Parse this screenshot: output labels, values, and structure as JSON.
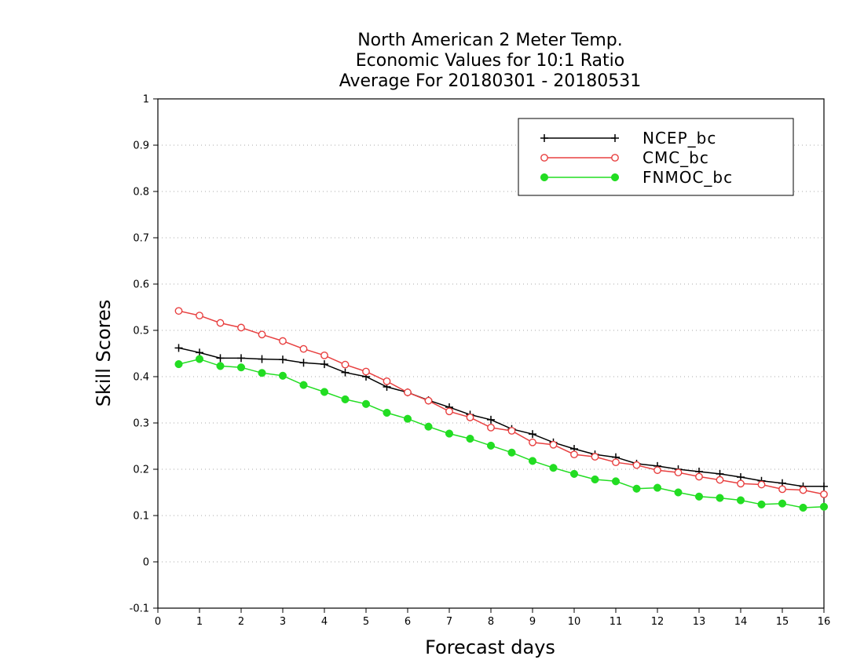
{
  "chart_data": {
    "type": "line",
    "title": [
      "North American 2 Meter Temp.",
      "Economic Values for 10:1 Ratio",
      "Average For 20180301 - 20180531"
    ],
    "xlabel": "Forecast days",
    "ylabel": "Skill Scores",
    "xlim": [
      0,
      16
    ],
    "ylim": [
      -0.1,
      1
    ],
    "x_ticks": [
      "0",
      "1",
      "2",
      "3",
      "4",
      "5",
      "6",
      "7",
      "8",
      "9",
      "10",
      "11",
      "12",
      "13",
      "14",
      "15",
      "16"
    ],
    "y_ticks": [
      "-0.1",
      "0",
      "0.1",
      "0.2",
      "0.3",
      "0.4",
      "0.5",
      "0.6",
      "0.7",
      "0.8",
      "0.9",
      "1"
    ],
    "grid": "horizontal-dotted",
    "legend_position": "top-right",
    "x": [
      0.5,
      1,
      1.5,
      2,
      2.5,
      3,
      3.5,
      4,
      4.5,
      5,
      5.5,
      6,
      6.5,
      7,
      7.5,
      8,
      8.5,
      9,
      9.5,
      10,
      10.5,
      11,
      11.5,
      12,
      12.5,
      13,
      13.5,
      14,
      14.5,
      15,
      15.5,
      16
    ],
    "series": [
      {
        "name": "NCEP_bc",
        "color": "#000000",
        "marker": "plus",
        "values": [
          0.462,
          0.452,
          0.44,
          0.44,
          0.438,
          0.437,
          0.43,
          0.427,
          0.409,
          0.4,
          0.378,
          0.366,
          0.349,
          0.334,
          0.318,
          0.307,
          0.287,
          0.276,
          0.258,
          0.244,
          0.232,
          0.226,
          0.212,
          0.207,
          0.2,
          0.195,
          0.19,
          0.183,
          0.175,
          0.17,
          0.163,
          0.163
        ]
      },
      {
        "name": "CMC_bc",
        "color": "#e84040",
        "marker": "open-circle",
        "values": [
          0.542,
          0.532,
          0.516,
          0.506,
          0.491,
          0.477,
          0.46,
          0.446,
          0.426,
          0.411,
          0.39,
          0.366,
          0.348,
          0.325,
          0.312,
          0.29,
          0.283,
          0.258,
          0.253,
          0.232,
          0.227,
          0.215,
          0.209,
          0.198,
          0.193,
          0.184,
          0.177,
          0.169,
          0.167,
          0.157,
          0.155,
          0.146
        ]
      },
      {
        "name": "FNMOC_bc",
        "color": "#22dd22",
        "marker": "filled-circle",
        "values": [
          0.427,
          0.438,
          0.423,
          0.42,
          0.408,
          0.402,
          0.382,
          0.367,
          0.351,
          0.341,
          0.322,
          0.309,
          0.292,
          0.277,
          0.266,
          0.251,
          0.236,
          0.218,
          0.203,
          0.19,
          0.178,
          0.174,
          0.158,
          0.16,
          0.15,
          0.141,
          0.138,
          0.133,
          0.124,
          0.126,
          0.117,
          0.119
        ]
      }
    ]
  }
}
